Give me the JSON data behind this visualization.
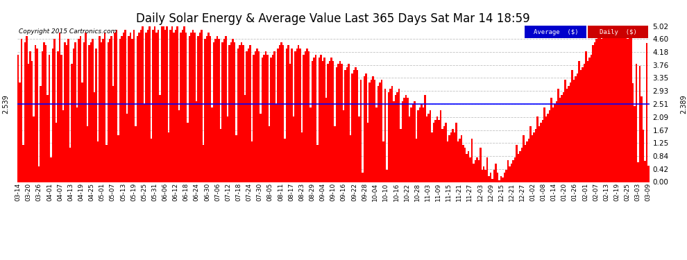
{
  "title": "Daily Solar Energy & Average Value Last 365 Days Sat Mar 14 18:59",
  "copyright": "Copyright 2015 Cartronics.com",
  "average_value": 2.51,
  "left_label": "2.539",
  "right_label": "2.389",
  "ylim": [
    0.0,
    5.02
  ],
  "yticks": [
    0.0,
    0.42,
    0.84,
    1.25,
    1.67,
    2.09,
    2.51,
    2.93,
    3.35,
    3.76,
    4.18,
    4.6,
    5.02
  ],
  "bar_color": "#ff0000",
  "average_line_color": "#0000ff",
  "background_color": "#ffffff",
  "grid_color": "#bbbbbb",
  "title_fontsize": 12,
  "legend_avg_bg": "#0000cc",
  "legend_daily_bg": "#cc0000",
  "xtick_labels": [
    "03-14",
    "03-20",
    "03-26",
    "04-01",
    "04-07",
    "04-13",
    "04-19",
    "04-25",
    "05-01",
    "05-07",
    "05-13",
    "05-19",
    "05-25",
    "05-31",
    "06-06",
    "06-12",
    "06-18",
    "06-24",
    "06-30",
    "07-06",
    "07-12",
    "07-18",
    "07-24",
    "07-30",
    "08-05",
    "08-11",
    "08-17",
    "08-23",
    "08-29",
    "09-04",
    "09-10",
    "09-16",
    "09-22",
    "09-28",
    "10-04",
    "10-10",
    "10-16",
    "10-22",
    "10-28",
    "11-03",
    "11-09",
    "11-15",
    "11-21",
    "11-27",
    "12-03",
    "12-09",
    "12-15",
    "12-21",
    "12-27",
    "01-02",
    "01-08",
    "01-14",
    "01-20",
    "01-26",
    "02-01",
    "02-07",
    "02-13",
    "02-19",
    "02-25",
    "03-03",
    "03-09"
  ],
  "num_bars": 365,
  "values": [
    4.1,
    3.2,
    4.6,
    1.2,
    4.5,
    4.7,
    3.8,
    4.2,
    3.9,
    2.1,
    4.4,
    4.3,
    0.5,
    3.1,
    4.2,
    4.5,
    4.4,
    2.8,
    4.1,
    0.8,
    4.3,
    4.6,
    1.9,
    4.2,
    4.8,
    4.1,
    2.3,
    4.5,
    4.4,
    4.6,
    1.1,
    3.8,
    4.3,
    4.5,
    2.4,
    4.6,
    4.7,
    3.2,
    4.5,
    4.8,
    1.8,
    4.4,
    4.5,
    4.6,
    2.9,
    4.3,
    1.3,
    4.7,
    4.5,
    4.6,
    4.8,
    1.2,
    4.5,
    4.6,
    4.7,
    3.1,
    4.8,
    4.9,
    1.5,
    4.6,
    4.7,
    4.8,
    4.9,
    2.2,
    4.7,
    4.8,
    4.6,
    4.9,
    1.8,
    4.7,
    4.8,
    4.9,
    5.0,
    2.5,
    4.8,
    4.9,
    5.0,
    1.4,
    4.9,
    5.0,
    4.8,
    4.9,
    2.8,
    5.0,
    5.0,
    4.9,
    5.0,
    1.6,
    4.9,
    5.0,
    4.8,
    4.9,
    5.0,
    2.3,
    4.8,
    4.9,
    5.0,
    4.8,
    1.9,
    4.7,
    4.8,
    4.9,
    4.8,
    2.6,
    4.7,
    4.8,
    4.9,
    1.2,
    4.6,
    4.7,
    4.8,
    4.7,
    2.4,
    4.5,
    4.6,
    4.7,
    4.6,
    1.7,
    4.5,
    4.6,
    4.7,
    2.1,
    4.4,
    4.5,
    4.6,
    4.5,
    1.5,
    4.3,
    4.4,
    4.5,
    4.4,
    2.8,
    4.2,
    4.3,
    4.4,
    1.3,
    4.1,
    4.2,
    4.3,
    4.2,
    2.2,
    4.0,
    4.1,
    4.2,
    4.1,
    1.8,
    4.0,
    4.1,
    4.2,
    2.5,
    4.3,
    4.4,
    4.5,
    4.4,
    1.4,
    4.3,
    4.4,
    3.8,
    4.3,
    2.1,
    4.2,
    4.3,
    4.4,
    4.3,
    1.6,
    4.1,
    4.2,
    4.3,
    4.2,
    2.4,
    3.9,
    4.0,
    4.1,
    1.2,
    4.0,
    4.1,
    3.9,
    4.0,
    2.7,
    3.8,
    3.9,
    4.0,
    3.9,
    1.8,
    3.7,
    3.8,
    3.9,
    3.8,
    2.3,
    3.6,
    3.7,
    3.8,
    1.5,
    3.5,
    3.6,
    3.7,
    3.6,
    2.1,
    3.3,
    0.3,
    3.4,
    3.5,
    1.9,
    3.2,
    3.3,
    3.4,
    3.3,
    2.4,
    3.1,
    3.2,
    3.3,
    1.3,
    3.0,
    0.4,
    2.9,
    3.0,
    3.1,
    2.6,
    2.8,
    2.9,
    3.0,
    1.7,
    2.6,
    2.7,
    2.8,
    2.7,
    2.1,
    2.4,
    2.5,
    2.6,
    1.4,
    2.3,
    2.4,
    2.5,
    2.4,
    2.8,
    2.1,
    2.2,
    2.3,
    1.6,
    1.9,
    2.0,
    2.1,
    2.0,
    2.3,
    1.7,
    1.8,
    1.9,
    1.3,
    1.5,
    1.6,
    1.7,
    1.6,
    1.9,
    1.3,
    1.4,
    1.5,
    1.2,
    1.1,
    0.9,
    1.0,
    0.8,
    1.4,
    0.6,
    0.7,
    0.8,
    0.7,
    1.1,
    0.4,
    0.5,
    0.4,
    0.8,
    0.2,
    0.3,
    0.1,
    0.4,
    0.6,
    0.3,
    0.05,
    0.2,
    0.15,
    0.3,
    0.4,
    0.7,
    0.5,
    0.6,
    0.7,
    0.8,
    1.2,
    0.9,
    1.0,
    1.1,
    1.5,
    1.2,
    1.3,
    1.4,
    1.8,
    1.5,
    1.6,
    1.7,
    2.1,
    1.8,
    1.9,
    2.0,
    2.4,
    2.1,
    2.2,
    2.3,
    2.7,
    2.4,
    2.5,
    2.6,
    3.0,
    2.7,
    2.8,
    2.9,
    3.3,
    3.0,
    3.1,
    3.2,
    3.6,
    3.3,
    3.4,
    3.5,
    3.9,
    3.6,
    3.7,
    3.8,
    4.2,
    3.9,
    4.0,
    4.1,
    4.4,
    4.5,
    4.6,
    4.7,
    4.8,
    4.6,
    4.7,
    4.8,
    4.9,
    5.0,
    4.8,
    4.9,
    5.0,
    4.7,
    4.8,
    4.9,
    5.0,
    4.9,
    4.8,
    4.9,
    4.6,
    4.7,
    4.8
  ]
}
